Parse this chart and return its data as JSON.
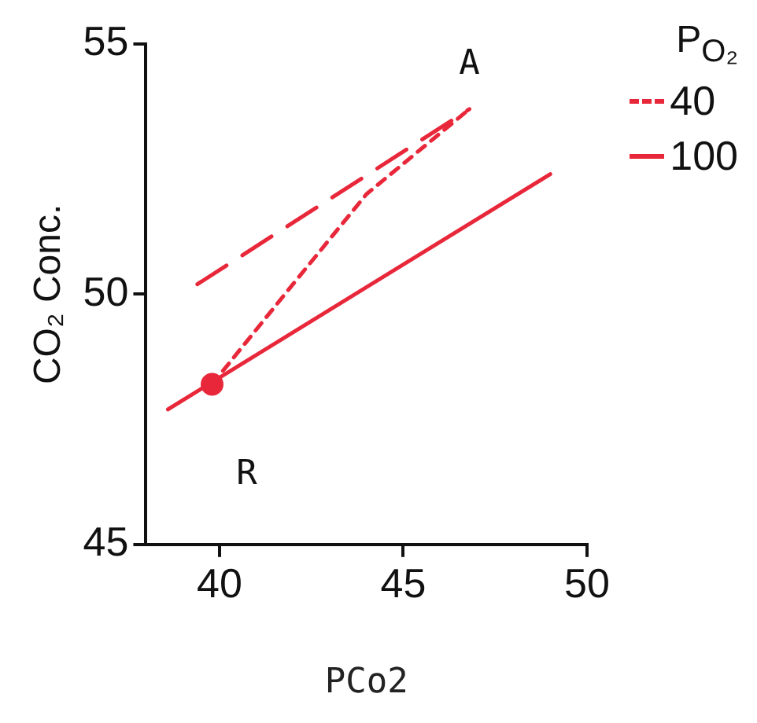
{
  "chart_data": {
    "type": "line",
    "xlabel": "PCo2",
    "ylabel": "CO₂ Conc.",
    "legend_title": "P$_{O₂}$",
    "legend": "top right",
    "grid": false,
    "xlim": [
      38,
      50
    ],
    "xticks": [
      40,
      45,
      50
    ],
    "ylim": [
      45,
      55
    ],
    "yticks": [
      45,
      50,
      55
    ],
    "series": [
      {
        "name": "40",
        "color": "#e8283a",
        "line_style": "dashed",
        "marker": "none",
        "x": [
          39.4,
          46.8
        ],
        "values": [
          50.2,
          53.7
        ]
      },
      {
        "name": "100",
        "color": "#e8283a",
        "line_style": "solid",
        "marker": "none",
        "x": [
          38.6,
          49.0
        ],
        "values": [
          47.7,
          52.4
        ]
      },
      {
        "color": "#e8283a",
        "line_style": "dotted",
        "marker": "none",
        "x": [
          39.8,
          42,
          44,
          46.8
        ],
        "values": [
          48.2,
          50.2,
          52,
          53.7
        ]
      },
      {
        "type": "scatter",
        "color": "#e8283a",
        "marker": "circle",
        "x": [
          39.8
        ],
        "values": [
          48.2
        ]
      }
    ],
    "annotations": [
      {
        "text": "A",
        "x": 46.8,
        "y": 53.7
      },
      {
        "text": "R",
        "x": 39.8,
        "y": 48.2
      }
    ]
  }
}
